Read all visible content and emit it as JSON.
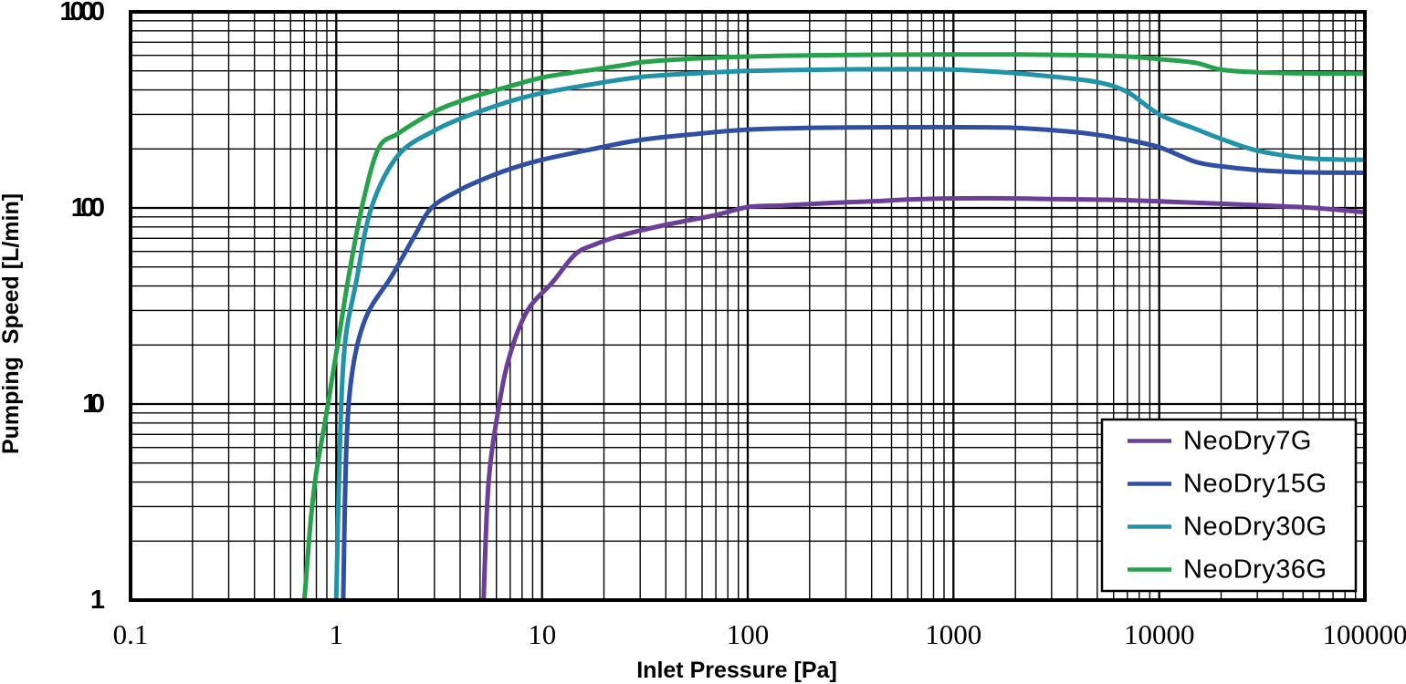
{
  "chart_data": {
    "type": "line",
    "title": "",
    "xlabel": "Inlet Pressure [Pa]",
    "ylabel": "Pumping  Speed [L/min]",
    "x_scale": "log",
    "y_scale": "log",
    "xlim": [
      0.1,
      100000
    ],
    "ylim": [
      1,
      1000
    ],
    "x_ticks": [
      0.1,
      1,
      10,
      100,
      1000,
      10000,
      100000
    ],
    "x_tick_labels": [
      "0.1",
      "1",
      "10",
      "100",
      "1000",
      "10000",
      "100000"
    ],
    "y_ticks": [
      1,
      10,
      100,
      1000
    ],
    "y_tick_labels": [
      "1",
      "10",
      "100",
      "1000"
    ],
    "grid": {
      "major": true,
      "minor": true,
      "color": "#000000"
    },
    "legend_position": "inside lower right",
    "axis_color": "#000000",
    "text_color": "#000000",
    "series": [
      {
        "name": "NeoDry7G",
        "color": "#6b3e98",
        "points": [
          [
            5.2,
            1
          ],
          [
            5.5,
            4
          ],
          [
            6.2,
            10
          ],
          [
            7,
            18
          ],
          [
            8.5,
            30
          ],
          [
            11.3,
            42
          ],
          [
            14.5,
            58
          ],
          [
            18,
            65
          ],
          [
            25,
            73
          ],
          [
            40,
            82
          ],
          [
            70,
            92
          ],
          [
            100,
            101
          ],
          [
            150,
            103
          ],
          [
            250,
            106
          ],
          [
            400,
            108
          ],
          [
            700,
            111
          ],
          [
            1500,
            112
          ],
          [
            3000,
            111
          ],
          [
            6000,
            110
          ],
          [
            10000,
            108
          ],
          [
            20000,
            105
          ],
          [
            40000,
            102
          ],
          [
            57000,
            100
          ],
          [
            80000,
            97
          ],
          [
            100000,
            95
          ]
        ]
      },
      {
        "name": "NeoDry15G",
        "color": "#2e4fa3",
        "points": [
          [
            1.08,
            1
          ],
          [
            1.12,
            6
          ],
          [
            1.2,
            15
          ],
          [
            1.4,
            28
          ],
          [
            1.86,
            45
          ],
          [
            2.4,
            72
          ],
          [
            2.9,
            100
          ],
          [
            3.9,
            122
          ],
          [
            5,
            138
          ],
          [
            7,
            158
          ],
          [
            10,
            176
          ],
          [
            17,
            198
          ],
          [
            30,
            222
          ],
          [
            60,
            240
          ],
          [
            100,
            251
          ],
          [
            200,
            256
          ],
          [
            500,
            258
          ],
          [
            1000,
            258
          ],
          [
            2000,
            256
          ],
          [
            3500,
            246
          ],
          [
            5000,
            236
          ],
          [
            7000,
            222
          ],
          [
            10000,
            204
          ],
          [
            15000,
            172
          ],
          [
            20000,
            163
          ],
          [
            30000,
            156
          ],
          [
            50000,
            152
          ],
          [
            100000,
            151
          ]
        ]
      },
      {
        "name": "NeoDry30G",
        "color": "#2093a8",
        "points": [
          [
            1.0,
            1
          ],
          [
            1.04,
            6
          ],
          [
            1.1,
            20
          ],
          [
            1.25,
            42
          ],
          [
            1.48,
            100
          ],
          [
            2,
            186
          ],
          [
            3,
            248
          ],
          [
            4,
            285
          ],
          [
            5,
            311
          ],
          [
            7,
            350
          ],
          [
            10,
            385
          ],
          [
            17,
            425
          ],
          [
            30,
            465
          ],
          [
            60,
            488
          ],
          [
            100,
            500
          ],
          [
            200,
            506
          ],
          [
            400,
            510
          ],
          [
            800,
            510
          ],
          [
            1500,
            497
          ],
          [
            3000,
            468
          ],
          [
            5000,
            438
          ],
          [
            7000,
            390
          ],
          [
            10000,
            300
          ],
          [
            15000,
            253
          ],
          [
            20000,
            225
          ],
          [
            30000,
            196
          ],
          [
            50000,
            180
          ],
          [
            70000,
            177
          ],
          [
            100000,
            176
          ]
        ]
      },
      {
        "name": "NeoDry36G",
        "color": "#27a24c",
        "points": [
          [
            0.7,
            1
          ],
          [
            0.75,
            2.5
          ],
          [
            0.8,
            4.5
          ],
          [
            0.88,
            8
          ],
          [
            0.96,
            14
          ],
          [
            1.05,
            25
          ],
          [
            1.15,
            45
          ],
          [
            1.33,
            100
          ],
          [
            1.6,
            200
          ],
          [
            2,
            240
          ],
          [
            3,
            310
          ],
          [
            4,
            350
          ],
          [
            5,
            378
          ],
          [
            7,
            418
          ],
          [
            10,
            462
          ],
          [
            14,
            490
          ],
          [
            18,
            508
          ],
          [
            25,
            535
          ],
          [
            31,
            555
          ],
          [
            50,
            575
          ],
          [
            100,
            592
          ],
          [
            200,
            600
          ],
          [
            500,
            605
          ],
          [
            1000,
            606
          ],
          [
            2000,
            606
          ],
          [
            4000,
            602
          ],
          [
            7000,
            592
          ],
          [
            10000,
            574
          ],
          [
            15000,
            550
          ],
          [
            20000,
            507
          ],
          [
            30000,
            492
          ],
          [
            50000,
            486
          ],
          [
            100000,
            484
          ]
        ]
      }
    ]
  }
}
